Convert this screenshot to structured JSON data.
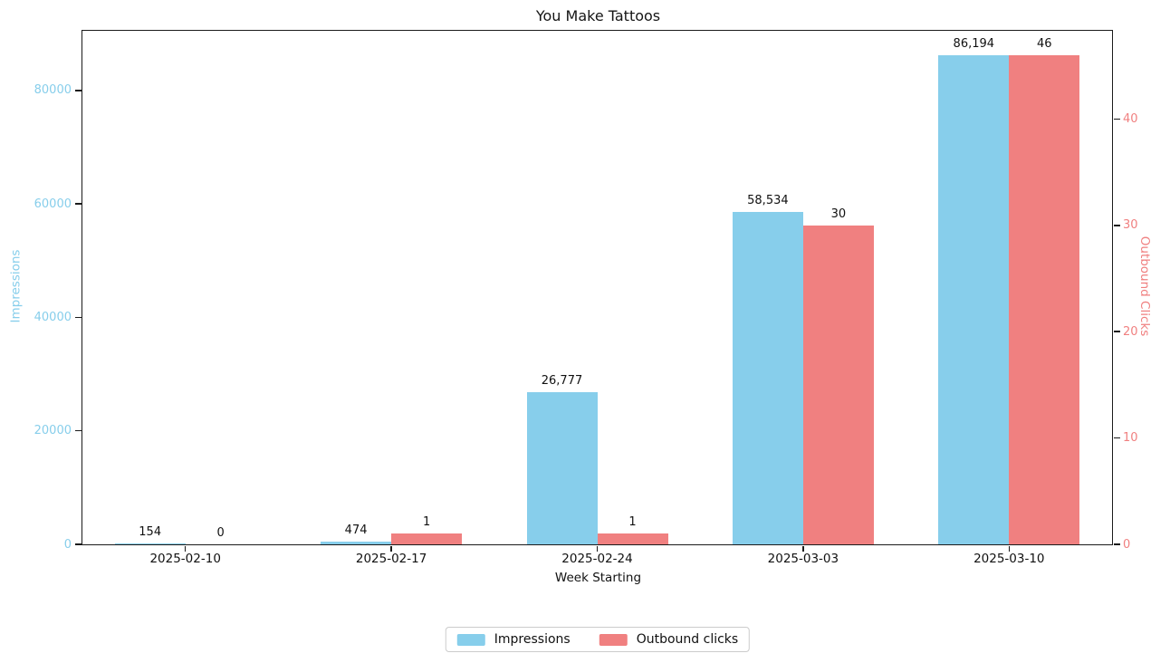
{
  "chart_data": {
    "type": "bar",
    "title": "You Make Tattoos",
    "xlabel": "Week Starting",
    "grid": false,
    "legend_position": "below-center",
    "categories": [
      "2025-02-10",
      "2025-02-17",
      "2025-02-24",
      "2025-03-03",
      "2025-03-10"
    ],
    "series": [
      {
        "name": "Impressions",
        "axis": "left",
        "color": "#87CEEB",
        "values": [
          154,
          474,
          26777,
          58534,
          86194
        ],
        "value_labels": [
          "154",
          "474",
          "26,777",
          "58,534",
          "86,194"
        ]
      },
      {
        "name": "Outbound clicks",
        "axis": "right",
        "color": "#F08080",
        "values": [
          0,
          1,
          1,
          30,
          46
        ],
        "value_labels": [
          "0",
          "1",
          "1",
          "30",
          "46"
        ]
      }
    ],
    "left_axis": {
      "label": "Impressions",
      "color": "#87CEEB",
      "ticks": [
        0,
        20000,
        40000,
        60000,
        80000
      ],
      "tick_labels": [
        "0",
        "20000",
        "40000",
        "60000",
        "80000"
      ],
      "ylim": [
        0,
        90500
      ]
    },
    "right_axis": {
      "label": "Outbound Clicks",
      "color": "#F08080",
      "ticks": [
        0,
        10,
        20,
        30,
        40
      ],
      "tick_labels": [
        "0",
        "10",
        "20",
        "30",
        "40"
      ],
      "ylim": [
        0,
        48.3
      ]
    },
    "legend": {
      "entries": [
        {
          "label": "Impressions",
          "color": "#87CEEB"
        },
        {
          "label": "Outbound clicks",
          "color": "#F08080"
        }
      ]
    }
  }
}
